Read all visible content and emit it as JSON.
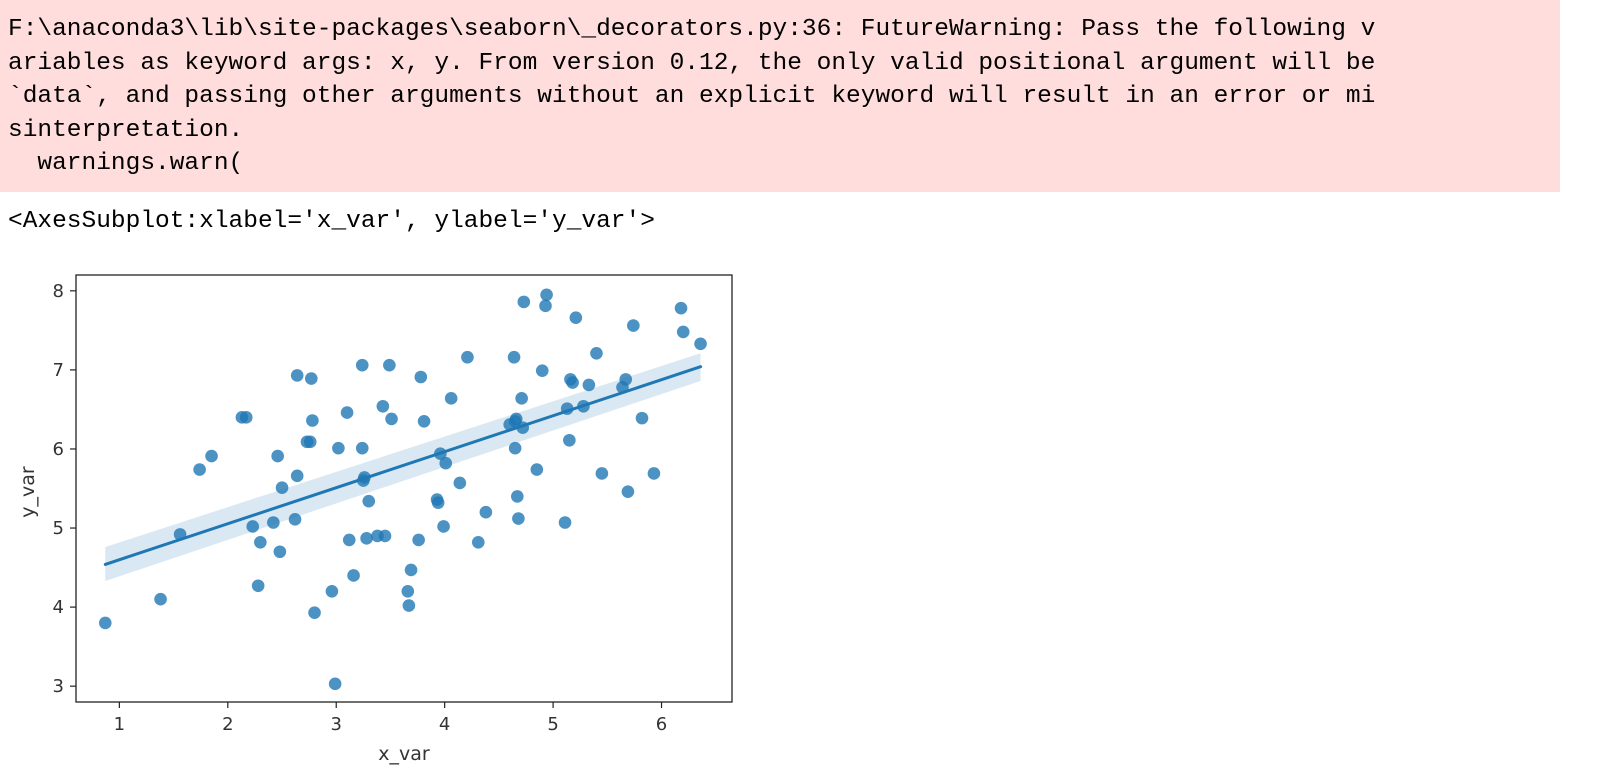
{
  "warning": {
    "lines": [
      "F:\\anaconda3\\lib\\site-packages\\seaborn\\_decorators.py:36: FutureWarning: Pass the following v",
      "ariables as keyword args: x, y. From version 0.12, the only valid positional argument will be",
      "`data`, and passing other arguments without an explicit keyword will result in an error or mi",
      "sinterpretation.",
      "  warnings.warn("
    ],
    "background_color": "#ffdddd"
  },
  "output": {
    "repr": "<AxesSubplot:xlabel='x_var', ylabel='y_var'>"
  },
  "chart_data": {
    "type": "scatter",
    "xlabel": "x_var",
    "ylabel": "y_var",
    "xlim": [
      0.6,
      6.65
    ],
    "ylim": [
      2.8,
      8.2
    ],
    "xticks": [
      "1",
      "2",
      "3",
      "4",
      "5",
      "6"
    ],
    "yticks": [
      "3",
      "4",
      "5",
      "6",
      "7",
      "8"
    ],
    "point_color": "#1f77b4",
    "grid": false,
    "points": [
      [
        0.87,
        3.8
      ],
      [
        1.38,
        4.1
      ],
      [
        1.56,
        4.92
      ],
      [
        1.74,
        5.74
      ],
      [
        1.85,
        5.91
      ],
      [
        2.13,
        6.4
      ],
      [
        2.17,
        6.4
      ],
      [
        2.23,
        5.02
      ],
      [
        2.28,
        4.27
      ],
      [
        2.3,
        4.82
      ],
      [
        2.42,
        5.07
      ],
      [
        2.46,
        5.91
      ],
      [
        2.48,
        4.7
      ],
      [
        2.5,
        5.51
      ],
      [
        2.62,
        5.11
      ],
      [
        2.64,
        5.66
      ],
      [
        2.64,
        6.93
      ],
      [
        2.73,
        6.09
      ],
      [
        2.76,
        6.09
      ],
      [
        2.77,
        6.89
      ],
      [
        2.78,
        6.36
      ],
      [
        2.8,
        3.93
      ],
      [
        2.96,
        4.2
      ],
      [
        2.99,
        3.03
      ],
      [
        3.02,
        6.01
      ],
      [
        3.1,
        6.46
      ],
      [
        3.12,
        4.85
      ],
      [
        3.16,
        4.4
      ],
      [
        3.24,
        7.06
      ],
      [
        3.24,
        6.01
      ],
      [
        3.25,
        5.6
      ],
      [
        3.26,
        5.64
      ],
      [
        3.28,
        4.87
      ],
      [
        3.3,
        5.34
      ],
      [
        3.38,
        4.9
      ],
      [
        3.43,
        6.54
      ],
      [
        3.45,
        4.9
      ],
      [
        3.49,
        7.06
      ],
      [
        3.51,
        6.38
      ],
      [
        3.66,
        4.2
      ],
      [
        3.67,
        4.02
      ],
      [
        3.69,
        4.47
      ],
      [
        3.76,
        4.85
      ],
      [
        3.78,
        6.91
      ],
      [
        3.81,
        6.35
      ],
      [
        3.93,
        5.36
      ],
      [
        3.94,
        5.32
      ],
      [
        3.96,
        5.94
      ],
      [
        3.99,
        5.02
      ],
      [
        4.01,
        5.82
      ],
      [
        4.06,
        6.64
      ],
      [
        4.14,
        5.57
      ],
      [
        4.21,
        7.16
      ],
      [
        4.31,
        4.82
      ],
      [
        4.38,
        5.2
      ],
      [
        4.6,
        6.31
      ],
      [
        4.64,
        7.16
      ],
      [
        4.65,
        6.01
      ],
      [
        4.65,
        6.35
      ],
      [
        4.66,
        6.38
      ],
      [
        4.67,
        5.4
      ],
      [
        4.68,
        5.12
      ],
      [
        4.71,
        6.64
      ],
      [
        4.72,
        6.27
      ],
      [
        4.73,
        7.86
      ],
      [
        4.85,
        5.74
      ],
      [
        4.9,
        6.99
      ],
      [
        4.93,
        7.81
      ],
      [
        4.94,
        7.95
      ],
      [
        5.11,
        5.07
      ],
      [
        5.13,
        6.51
      ],
      [
        5.15,
        6.11
      ],
      [
        5.16,
        6.88
      ],
      [
        5.18,
        6.84
      ],
      [
        5.21,
        7.66
      ],
      [
        5.28,
        6.54
      ],
      [
        5.33,
        6.81
      ],
      [
        5.4,
        7.21
      ],
      [
        5.45,
        5.69
      ],
      [
        5.64,
        6.78
      ],
      [
        5.67,
        6.88
      ],
      [
        5.69,
        5.46
      ],
      [
        5.74,
        7.56
      ],
      [
        5.82,
        6.39
      ],
      [
        5.93,
        5.69
      ],
      [
        6.18,
        7.78
      ],
      [
        6.2,
        7.48
      ],
      [
        6.36,
        7.33
      ]
    ],
    "regression": {
      "x": [
        0.87,
        6.36
      ],
      "y": [
        4.54,
        7.04
      ],
      "ci_lower": [
        4.33,
        6.86
      ],
      "ci_upper": [
        4.76,
        7.21
      ]
    }
  }
}
